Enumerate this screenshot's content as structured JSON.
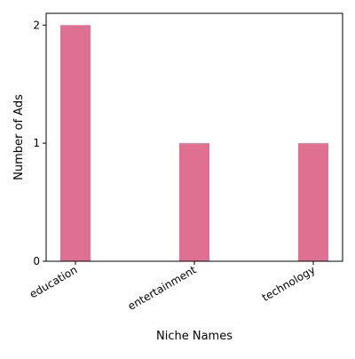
{
  "chart_data": {
    "type": "bar",
    "categories": [
      "education",
      "entertainment",
      "technology"
    ],
    "values": [
      2,
      1,
      1
    ],
    "xlabel": "Niche Names",
    "ylabel": "Number of Ads",
    "ylim": [
      0,
      2.1
    ],
    "yticks": [
      "0",
      "1",
      "2"
    ],
    "bar_color": "#e07091",
    "grid": false,
    "legend": "none"
  }
}
